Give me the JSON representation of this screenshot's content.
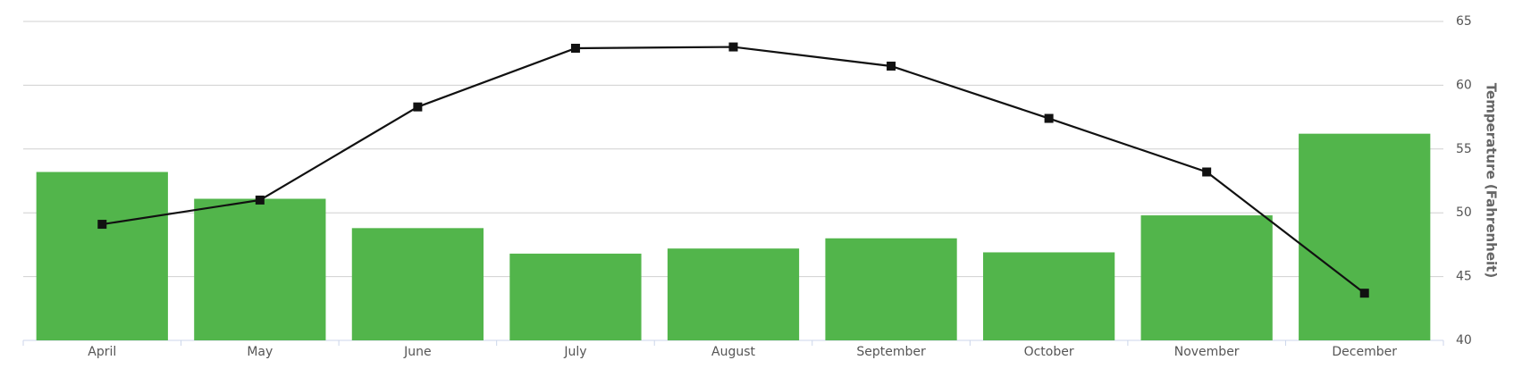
{
  "chart_data": {
    "type": "combo",
    "categories": [
      "April",
      "May",
      "June",
      "July",
      "August",
      "September",
      "October",
      "November",
      "December"
    ],
    "series": [
      {
        "type": "bar",
        "color": "#52b54b",
        "values": [
          53.2,
          51.1,
          48.8,
          46.8,
          47.2,
          48.0,
          46.9,
          49.8,
          56.2
        ]
      },
      {
        "type": "line",
        "color": "#111111",
        "values": [
          49.1,
          51.0,
          58.3,
          62.9,
          63.0,
          61.5,
          57.4,
          53.2,
          43.7
        ]
      }
    ],
    "y_axis_label": "Temperature (Fahrenheit)",
    "y_axis_side": "right",
    "ylim": [
      40,
      65
    ],
    "yticks": [
      40,
      45,
      50,
      55,
      60,
      65
    ],
    "grid": true
  }
}
